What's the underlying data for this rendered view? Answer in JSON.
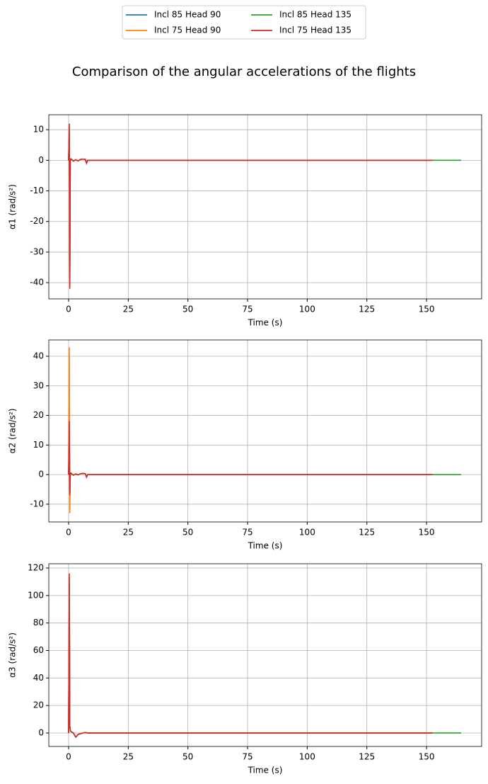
{
  "title": "Comparison of the angular accelerations of the flights",
  "chart_data": [
    {
      "type": "line",
      "x_label": "Time (s)",
      "y_label": "α1 (rad/s²)",
      "grid": true,
      "xlim": [
        -8.3,
        173.1
      ],
      "ylim": [
        -45.3,
        14.9
      ],
      "xticks": [
        0,
        25,
        50,
        75,
        100,
        125,
        150
      ],
      "yticks": [
        -40,
        -30,
        -20,
        -10,
        0,
        10
      ],
      "series": [
        {
          "name": "Incl 85 Head 90",
          "color": "#1f77b4",
          "x": [
            0,
            0.3,
            0.5,
            0.7,
            1,
            2,
            3,
            4,
            5,
            6,
            7,
            7.5,
            8,
            9,
            152.5
          ],
          "values": [
            0,
            10,
            -38,
            0,
            0.4,
            -0.2,
            0.2,
            -0.2,
            0.3,
            0.4,
            0.3,
            -0.8,
            0,
            0,
            0
          ]
        },
        {
          "name": "Incl 75 Head 90",
          "color": "#ff7f0e",
          "x": [
            0,
            0.3,
            0.5,
            0.7,
            1,
            2,
            3,
            4,
            5,
            6,
            7,
            7.5,
            8,
            9,
            152.5
          ],
          "values": [
            0,
            11,
            -40,
            0,
            0.5,
            -0.3,
            0.2,
            -0.2,
            0.3,
            0.4,
            0.3,
            -0.9,
            0,
            0,
            0
          ]
        },
        {
          "name": "Incl 85 Head 135",
          "color": "#2ca02c",
          "x": [
            0,
            0.3,
            0.5,
            0.7,
            1,
            2,
            3,
            4,
            5,
            6,
            7,
            7.5,
            8,
            9,
            164.5
          ],
          "values": [
            0,
            9,
            -36,
            0,
            0.4,
            -0.2,
            0.2,
            -0.2,
            0.3,
            0.4,
            0.3,
            -0.8,
            0,
            0,
            0
          ]
        },
        {
          "name": "Incl 75 Head 135",
          "color": "#d62728",
          "x": [
            0,
            0.3,
            0.5,
            0.7,
            1,
            2,
            3,
            4,
            5,
            6,
            7,
            7.5,
            8,
            9,
            152.5
          ],
          "values": [
            0,
            12,
            -42,
            0,
            0.5,
            -0.3,
            0.2,
            -0.2,
            0.3,
            0.4,
            0.3,
            -1,
            0,
            0,
            0
          ]
        }
      ]
    },
    {
      "type": "line",
      "x_label": "Time (s)",
      "y_label": "α2 (rad/s²)",
      "grid": true,
      "xlim": [
        -8.3,
        173.1
      ],
      "ylim": [
        -16.0,
        45.5
      ],
      "xticks": [
        0,
        25,
        50,
        75,
        100,
        125,
        150
      ],
      "yticks": [
        -10,
        0,
        10,
        20,
        30,
        40
      ],
      "series": [
        {
          "color": "#1f77b4",
          "x": [
            0,
            0.3,
            0.5,
            0.7,
            1,
            2,
            3,
            4,
            5,
            6,
            7,
            7.5,
            8,
            9,
            152.5
          ],
          "values": [
            0,
            15,
            -6,
            0,
            0.5,
            -0.2,
            0.2,
            -0.1,
            0.3,
            0.4,
            0.3,
            -0.7,
            0,
            0,
            0
          ]
        },
        {
          "color": "#ff7f0e",
          "x": [
            0,
            0.3,
            0.5,
            0.7,
            1,
            2,
            3,
            4,
            5,
            6,
            7,
            7.5,
            8,
            9,
            152.5
          ],
          "values": [
            0,
            43,
            -13,
            0,
            0.5,
            -0.2,
            0.2,
            -0.1,
            0.3,
            0.4,
            0.3,
            -0.8,
            0,
            0,
            0
          ]
        },
        {
          "color": "#2ca02c",
          "x": [
            0,
            0.3,
            0.5,
            0.7,
            1,
            2,
            3,
            4,
            5,
            6,
            7,
            7.5,
            8,
            9,
            164.5
          ],
          "values": [
            0,
            14,
            -5,
            0,
            0.5,
            -0.2,
            0.2,
            -0.1,
            0.3,
            0.4,
            0.3,
            -0.7,
            0,
            0,
            0
          ]
        },
        {
          "color": "#d62728",
          "x": [
            0,
            0.3,
            0.5,
            0.7,
            1,
            2,
            3,
            4,
            5,
            6,
            7,
            7.5,
            8,
            9,
            152.5
          ],
          "values": [
            0,
            18,
            -7,
            0,
            0.5,
            -0.2,
            0.2,
            -0.1,
            0.3,
            0.4,
            0.3,
            -0.9,
            0,
            0,
            0
          ]
        }
      ]
    },
    {
      "type": "line",
      "x_label": "Time (s)",
      "y_label": "α3 (rad/s²)",
      "grid": true,
      "xlim": [
        -8.3,
        173.1
      ],
      "ylim": [
        -9.8,
        123.1
      ],
      "xticks": [
        0,
        25,
        50,
        75,
        100,
        125,
        150
      ],
      "yticks": [
        0,
        20,
        40,
        60,
        80,
        100,
        120
      ],
      "series": [
        {
          "color": "#1f77b4",
          "x": [
            0,
            0.3,
            0.5,
            0.7,
            1,
            2,
            3,
            4,
            5,
            6,
            7,
            7.5,
            8,
            9,
            152.5
          ],
          "values": [
            0,
            110,
            5,
            2,
            1,
            0,
            -3,
            -1,
            -0.5,
            0,
            0.3,
            0.2,
            0,
            0,
            0
          ]
        },
        {
          "color": "#ff7f0e",
          "x": [
            0,
            0.3,
            0.5,
            0.7,
            1,
            2,
            3,
            4,
            5,
            6,
            7,
            7.5,
            8,
            9,
            152.5
          ],
          "values": [
            0,
            113,
            5,
            2,
            1,
            0,
            -3,
            -1,
            -0.5,
            0,
            0.3,
            0.2,
            0,
            0,
            0
          ]
        },
        {
          "color": "#2ca02c",
          "x": [
            0,
            0.3,
            0.5,
            0.7,
            1,
            2,
            3,
            4,
            5,
            6,
            7,
            7.5,
            8,
            9,
            164.5
          ],
          "values": [
            0,
            108,
            5,
            2,
            1,
            0,
            -3,
            -1,
            -0.5,
            0,
            0.3,
            0.2,
            0,
            0,
            0
          ]
        },
        {
          "color": "#d62728",
          "x": [
            0,
            0.3,
            0.5,
            0.7,
            1,
            2,
            3,
            4,
            5,
            6,
            7,
            7.5,
            8,
            9,
            152.5
          ],
          "values": [
            0,
            116,
            5,
            2,
            1,
            0,
            -3,
            -1,
            -0.5,
            0,
            0.3,
            0.2,
            0,
            0,
            0
          ]
        }
      ]
    }
  ]
}
